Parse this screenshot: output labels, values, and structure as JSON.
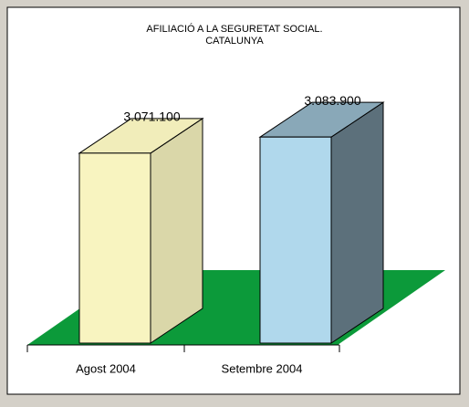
{
  "chart_data": {
    "type": "bar3d",
    "title": [
      "AFILIACIÓ A LA SEGURETAT SOCIAL.",
      "CATALUNYA"
    ],
    "categories": [
      "Agost 2004",
      "Setembre 2004"
    ],
    "values": [
      3071100,
      3083900
    ],
    "value_labels": [
      "3.071.100",
      "3.083.900"
    ],
    "colors": [
      "#f8f4c0",
      "#b0d8ec"
    ],
    "ylim": [
      2920000,
      3100000
    ],
    "floor_color": "#0c9a3a"
  }
}
